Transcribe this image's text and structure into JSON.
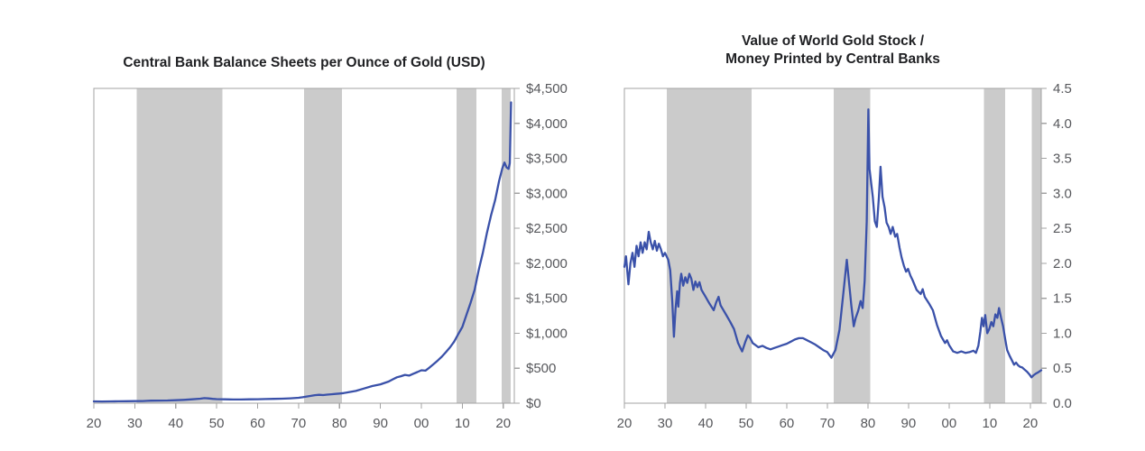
{
  "chart_data": [
    {
      "type": "line",
      "title_lines": [
        "Central Bank Balance Sheets per Ounce of Gold (USD)"
      ],
      "xlabel": "",
      "ylabel": "",
      "xlim": [
        1920,
        2022.7
      ],
      "ylim": [
        0,
        4500
      ],
      "grid": false,
      "legend": "none",
      "x_tick_labels": [
        "20",
        "30",
        "40",
        "50",
        "60",
        "70",
        "80",
        "90",
        "00",
        "10",
        "20"
      ],
      "x_tick_years": [
        1920,
        1930,
        1940,
        1950,
        1960,
        1970,
        1980,
        1990,
        2000,
        2010,
        2020
      ],
      "y_tick_labels": [
        "$0",
        "$500",
        "$1,000",
        "$1,500",
        "$2,000",
        "$2,500",
        "$3,000",
        "$3,500",
        "$4,000",
        "$4,500"
      ],
      "y_tick_values": [
        0,
        500,
        1000,
        1500,
        2000,
        2500,
        3000,
        3500,
        4000,
        4500
      ],
      "shaded_bands": [
        [
          1930.5,
          1951.4
        ],
        [
          1971.4,
          1980.6
        ],
        [
          2008.6,
          2013.4
        ],
        [
          2019.6,
          2021.8
        ]
      ],
      "line_color": "#3a51a9",
      "band_color": "#cbcbcb",
      "axis_color": "#a3a3a3",
      "label_color": "#56575b",
      "series": [
        {
          "points": [
            [
              1920,
              26
            ],
            [
              1922,
              25
            ],
            [
              1924,
              26
            ],
            [
              1926,
              27
            ],
            [
              1928,
              28
            ],
            [
              1930,
              30
            ],
            [
              1932,
              31
            ],
            [
              1933,
              34
            ],
            [
              1934,
              36
            ],
            [
              1936,
              37
            ],
            [
              1938,
              39
            ],
            [
              1940,
              43
            ],
            [
              1942,
              48
            ],
            [
              1944,
              55
            ],
            [
              1946,
              65
            ],
            [
              1947,
              72
            ],
            [
              1948,
              68
            ],
            [
              1949,
              62
            ],
            [
              1950,
              58
            ],
            [
              1952,
              55
            ],
            [
              1954,
              53
            ],
            [
              1956,
              53
            ],
            [
              1958,
              55
            ],
            [
              1960,
              57
            ],
            [
              1962,
              59
            ],
            [
              1964,
              62
            ],
            [
              1966,
              65
            ],
            [
              1968,
              70
            ],
            [
              1970,
              78
            ],
            [
              1971,
              85
            ],
            [
              1972,
              95
            ],
            [
              1973,
              105
            ],
            [
              1974,
              115
            ],
            [
              1975,
              120
            ],
            [
              1976,
              116
            ],
            [
              1977,
              122
            ],
            [
              1978,
              128
            ],
            [
              1979,
              133
            ],
            [
              1980,
              138
            ],
            [
              1981,
              145
            ],
            [
              1982,
              155
            ],
            [
              1984,
              175
            ],
            [
              1986,
              210
            ],
            [
              1988,
              245
            ],
            [
              1990,
              270
            ],
            [
              1992,
              310
            ],
            [
              1993,
              340
            ],
            [
              1994,
              370
            ],
            [
              1995,
              385
            ],
            [
              1996,
              405
            ],
            [
              1997,
              395
            ],
            [
              1998,
              420
            ],
            [
              1999,
              445
            ],
            [
              2000,
              470
            ],
            [
              2001,
              465
            ],
            [
              2002,
              510
            ],
            [
              2003,
              560
            ],
            [
              2004,
              610
            ],
            [
              2005,
              665
            ],
            [
              2006,
              730
            ],
            [
              2007,
              800
            ],
            [
              2008,
              880
            ],
            [
              2009,
              985
            ],
            [
              2010,
              1090
            ],
            [
              2011,
              1260
            ],
            [
              2012,
              1430
            ],
            [
              2013,
              1620
            ],
            [
              2014,
              1900
            ],
            [
              2015,
              2150
            ],
            [
              2016,
              2430
            ],
            [
              2017,
              2680
            ],
            [
              2018,
              2900
            ],
            [
              2019,
              3180
            ],
            [
              2019.8,
              3360
            ],
            [
              2020.3,
              3440
            ],
            [
              2020.8,
              3370
            ],
            [
              2021.3,
              3350
            ],
            [
              2021.6,
              3430
            ],
            [
              2021.9,
              4300
            ]
          ]
        }
      ]
    },
    {
      "type": "line",
      "title_lines": [
        "Value of World Gold Stock /",
        "Money Printed by Central Banks"
      ],
      "xlabel": "",
      "ylabel": "",
      "xlim": [
        1920,
        2022.7
      ],
      "ylim": [
        0,
        4.5
      ],
      "grid": false,
      "legend": "none",
      "x_tick_labels": [
        "20",
        "30",
        "40",
        "50",
        "60",
        "70",
        "80",
        "90",
        "00",
        "10",
        "20"
      ],
      "x_tick_years": [
        1920,
        1930,
        1940,
        1950,
        1960,
        1970,
        1980,
        1990,
        2000,
        2010,
        2020
      ],
      "y_tick_labels": [
        "0.0",
        "0.5",
        "1.0",
        "1.5",
        "2.0",
        "2.5",
        "3.0",
        "3.5",
        "4.0",
        "4.5"
      ],
      "y_tick_values": [
        0,
        0.5,
        1,
        1.5,
        2,
        2.5,
        3,
        3.5,
        4,
        4.5
      ],
      "shaded_bands": [
        [
          1930.5,
          1951.4
        ],
        [
          1971.6,
          1980.6
        ],
        [
          2008.6,
          2013.8
        ],
        [
          2020.4,
          2022.7
        ]
      ],
      "line_color": "#3a51a9",
      "band_color": "#cbcbcb",
      "axis_color": "#a3a3a3",
      "label_color": "#56575b",
      "series": [
        {
          "points": [
            [
              1920,
              1.95
            ],
            [
              1920.4,
              2.1
            ],
            [
              1921,
              1.7
            ],
            [
              1921.5,
              2.0
            ],
            [
              1922,
              2.15
            ],
            [
              1922.5,
              1.95
            ],
            [
              1923,
              2.25
            ],
            [
              1923.5,
              2.1
            ],
            [
              1924,
              2.3
            ],
            [
              1924.5,
              2.15
            ],
            [
              1925,
              2.3
            ],
            [
              1925.5,
              2.2
            ],
            [
              1926,
              2.45
            ],
            [
              1926.5,
              2.3
            ],
            [
              1927,
              2.2
            ],
            [
              1927.5,
              2.32
            ],
            [
              1928,
              2.18
            ],
            [
              1928.5,
              2.28
            ],
            [
              1929,
              2.2
            ],
            [
              1929.5,
              2.1
            ],
            [
              1930,
              2.15
            ],
            [
              1930.8,
              2.05
            ],
            [
              1931.3,
              1.9
            ],
            [
              1931.8,
              1.45
            ],
            [
              1932.2,
              0.95
            ],
            [
              1932.6,
              1.35
            ],
            [
              1933,
              1.6
            ],
            [
              1933.3,
              1.38
            ],
            [
              1933.7,
              1.72
            ],
            [
              1934,
              1.85
            ],
            [
              1934.5,
              1.68
            ],
            [
              1935,
              1.8
            ],
            [
              1935.5,
              1.72
            ],
            [
              1936,
              1.85
            ],
            [
              1936.5,
              1.78
            ],
            [
              1937,
              1.62
            ],
            [
              1937.5,
              1.74
            ],
            [
              1938,
              1.66
            ],
            [
              1938.5,
              1.73
            ],
            [
              1939,
              1.62
            ],
            [
              1940,
              1.52
            ],
            [
              1941,
              1.42
            ],
            [
              1942,
              1.33
            ],
            [
              1942.6,
              1.44
            ],
            [
              1943.2,
              1.52
            ],
            [
              1943.7,
              1.4
            ],
            [
              1944.3,
              1.34
            ],
            [
              1945,
              1.27
            ],
            [
              1946,
              1.17
            ],
            [
              1947,
              1.06
            ],
            [
              1948,
              0.86
            ],
            [
              1949,
              0.74
            ],
            [
              1949.8,
              0.88
            ],
            [
              1950.4,
              0.97
            ],
            [
              1951,
              0.93
            ],
            [
              1951.6,
              0.86
            ],
            [
              1952.3,
              0.83
            ],
            [
              1953,
              0.8
            ],
            [
              1954,
              0.82
            ],
            [
              1955,
              0.79
            ],
            [
              1956,
              0.77
            ],
            [
              1957,
              0.79
            ],
            [
              1958,
              0.81
            ],
            [
              1959,
              0.83
            ],
            [
              1960,
              0.85
            ],
            [
              1961,
              0.88
            ],
            [
              1962,
              0.91
            ],
            [
              1963,
              0.93
            ],
            [
              1964,
              0.93
            ],
            [
              1965,
              0.9
            ],
            [
              1966,
              0.87
            ],
            [
              1967,
              0.84
            ],
            [
              1968,
              0.8
            ],
            [
              1969,
              0.76
            ],
            [
              1970,
              0.73
            ],
            [
              1971,
              0.65
            ],
            [
              1972,
              0.76
            ],
            [
              1973,
              1.05
            ],
            [
              1974,
              1.6
            ],
            [
              1974.8,
              2.05
            ],
            [
              1975.3,
              1.75
            ],
            [
              1975.9,
              1.4
            ],
            [
              1976.5,
              1.1
            ],
            [
              1977,
              1.22
            ],
            [
              1977.6,
              1.32
            ],
            [
              1978.2,
              1.46
            ],
            [
              1978.7,
              1.36
            ],
            [
              1979.2,
              1.75
            ],
            [
              1979.7,
              2.6
            ],
            [
              1980.1,
              4.2
            ],
            [
              1980.4,
              3.35
            ],
            [
              1980.8,
              3.15
            ],
            [
              1981.2,
              2.95
            ],
            [
              1981.7,
              2.6
            ],
            [
              1982.2,
              2.52
            ],
            [
              1982.7,
              2.95
            ],
            [
              1983.1,
              3.38
            ],
            [
              1983.6,
              2.95
            ],
            [
              1984.1,
              2.8
            ],
            [
              1984.6,
              2.58
            ],
            [
              1985.1,
              2.52
            ],
            [
              1985.6,
              2.42
            ],
            [
              1986.1,
              2.52
            ],
            [
              1986.7,
              2.38
            ],
            [
              1987.2,
              2.42
            ],
            [
              1987.8,
              2.22
            ],
            [
              1988.3,
              2.08
            ],
            [
              1988.9,
              1.96
            ],
            [
              1989.4,
              1.88
            ],
            [
              1989.9,
              1.92
            ],
            [
              1990.5,
              1.82
            ],
            [
              1991,
              1.76
            ],
            [
              1992,
              1.62
            ],
            [
              1993,
              1.56
            ],
            [
              1993.5,
              1.63
            ],
            [
              1994,
              1.52
            ],
            [
              1995,
              1.43
            ],
            [
              1996,
              1.33
            ],
            [
              1997,
              1.12
            ],
            [
              1998,
              0.96
            ],
            [
              1999,
              0.86
            ],
            [
              1999.5,
              0.9
            ],
            [
              2000,
              0.83
            ],
            [
              2001,
              0.74
            ],
            [
              2002,
              0.72
            ],
            [
              2003,
              0.74
            ],
            [
              2004,
              0.72
            ],
            [
              2005,
              0.73
            ],
            [
              2006,
              0.75
            ],
            [
              2006.6,
              0.72
            ],
            [
              2007.2,
              0.82
            ],
            [
              2007.7,
              1.02
            ],
            [
              2008.1,
              1.22
            ],
            [
              2008.5,
              1.1
            ],
            [
              2008.9,
              1.26
            ],
            [
              2009.4,
              1.0
            ],
            [
              2009.9,
              1.06
            ],
            [
              2010.4,
              1.16
            ],
            [
              2010.9,
              1.1
            ],
            [
              2011.4,
              1.27
            ],
            [
              2011.9,
              1.22
            ],
            [
              2012.3,
              1.36
            ],
            [
              2012.8,
              1.22
            ],
            [
              2013.3,
              1.1
            ],
            [
              2013.8,
              0.92
            ],
            [
              2014.3,
              0.76
            ],
            [
              2014.9,
              0.68
            ],
            [
              2015.5,
              0.61
            ],
            [
              2016,
              0.55
            ],
            [
              2016.5,
              0.58
            ],
            [
              2017,
              0.54
            ],
            [
              2017.5,
              0.52
            ],
            [
              2018,
              0.51
            ],
            [
              2018.6,
              0.48
            ],
            [
              2019.2,
              0.45
            ],
            [
              2019.8,
              0.41
            ],
            [
              2020.3,
              0.37
            ],
            [
              2020.8,
              0.4
            ],
            [
              2021.3,
              0.42
            ],
            [
              2021.9,
              0.44
            ],
            [
              2022.4,
              0.46
            ],
            [
              2022.7,
              0.47
            ]
          ]
        }
      ]
    }
  ]
}
